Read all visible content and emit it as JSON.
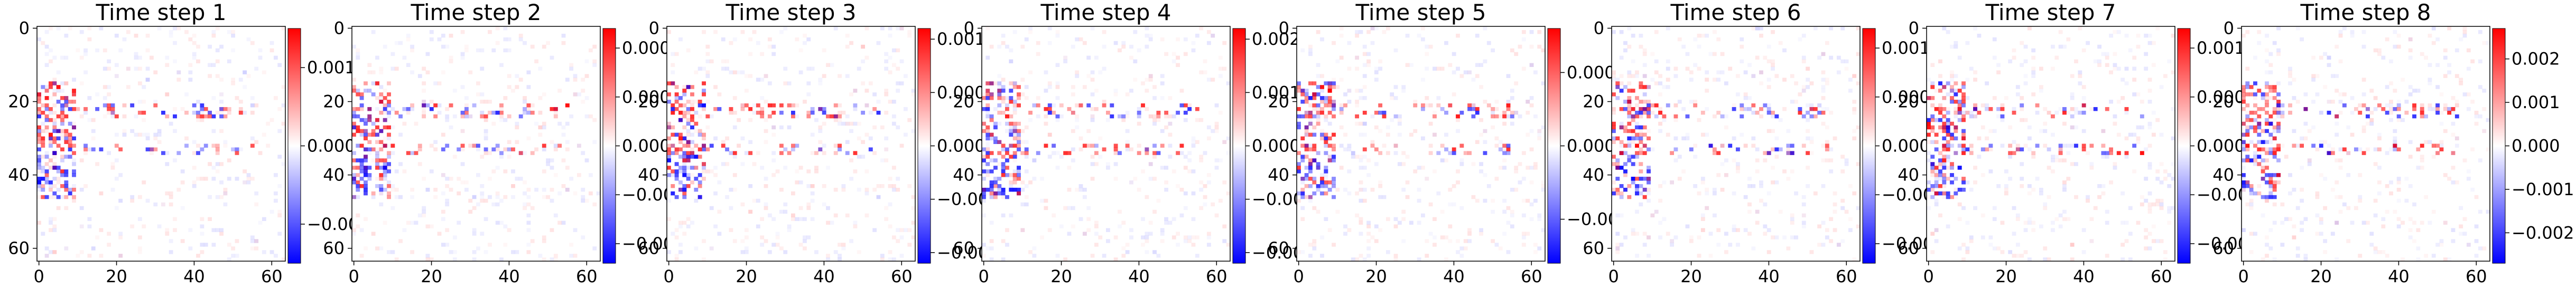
{
  "chart_data": [
    {
      "type": "heatmap",
      "title": "Time step 1",
      "xticks": [
        "0",
        "20",
        "40",
        "60"
      ],
      "yticks": [
        "0",
        "20",
        "40",
        "60"
      ],
      "colorbar": {
        "ticks": [
          "0.001",
          "0.000",
          "−0.001"
        ],
        "range": [
          -0.0015,
          0.0015
        ]
      }
    },
    {
      "type": "heatmap",
      "title": "Time step 2",
      "xticks": [
        "0",
        "20",
        "40",
        "60"
      ],
      "yticks": [
        "0",
        "20",
        "40",
        "60"
      ],
      "colorbar": {
        "ticks": [
          "0.0004",
          "0.0002",
          "0.0000",
          "−0.0002",
          "−0.0004"
        ],
        "range": [
          -0.00048,
          0.00048
        ]
      }
    },
    {
      "type": "heatmap",
      "title": "Time step 3",
      "xticks": [
        "0",
        "20",
        "40",
        "60"
      ],
      "yticks": [
        "0",
        "20",
        "40",
        "60"
      ],
      "colorbar": {
        "ticks": [
          "0.0010",
          "0.0005",
          "0.0000",
          "−0.0005",
          "−0.0010"
        ],
        "range": [
          -0.0011,
          0.0011
        ]
      }
    },
    {
      "type": "heatmap",
      "title": "Time step 4",
      "xticks": [
        "0",
        "20",
        "40",
        "60"
      ],
      "yticks": [
        "0",
        "20",
        "40",
        "60"
      ],
      "colorbar": {
        "ticks": [
          "0.002",
          "0.001",
          "0.000",
          "−0.001",
          "−0.002"
        ],
        "range": [
          -0.0022,
          0.0022
        ]
      }
    },
    {
      "type": "heatmap",
      "title": "Time step 5",
      "xticks": [
        "0",
        "20",
        "40",
        "60"
      ],
      "yticks": [
        "0",
        "20",
        "40",
        "60"
      ],
      "colorbar": {
        "ticks": [
          "0.0005",
          "0.0000",
          "−0.0005"
        ],
        "range": [
          -0.0008,
          0.0008
        ]
      }
    },
    {
      "type": "heatmap",
      "title": "Time step 6",
      "xticks": [
        "0",
        "20",
        "40",
        "60"
      ],
      "yticks": [
        "0",
        "20",
        "40",
        "60"
      ],
      "colorbar": {
        "ticks": [
          "0.0010",
          "0.0005",
          "0.0000",
          "−0.0005",
          "−0.0010"
        ],
        "range": [
          -0.0012,
          0.0012
        ]
      }
    },
    {
      "type": "heatmap",
      "title": "Time step 7",
      "xticks": [
        "0",
        "20",
        "40",
        "60"
      ],
      "yticks": [
        "0",
        "20",
        "40",
        "60"
      ],
      "colorbar": {
        "ticks": [
          "0.0010",
          "0.0005",
          "0.0000",
          "−0.0005",
          "−0.0010"
        ],
        "range": [
          -0.0012,
          0.0012
        ]
      }
    },
    {
      "type": "heatmap",
      "title": "Time step 8",
      "xticks": [
        "0",
        "20",
        "40",
        "60"
      ],
      "yticks": [
        "0",
        "20",
        "40",
        "60"
      ],
      "colorbar": {
        "ticks": [
          "0.002",
          "0.001",
          "0.000",
          "−0.001",
          "−0.002"
        ],
        "range": [
          -0.0027,
          0.0027
        ]
      }
    }
  ],
  "colors": {
    "negative": "#0000ff",
    "zero": "#ffffff",
    "positive": "#ff0000",
    "axes": "#000000"
  }
}
